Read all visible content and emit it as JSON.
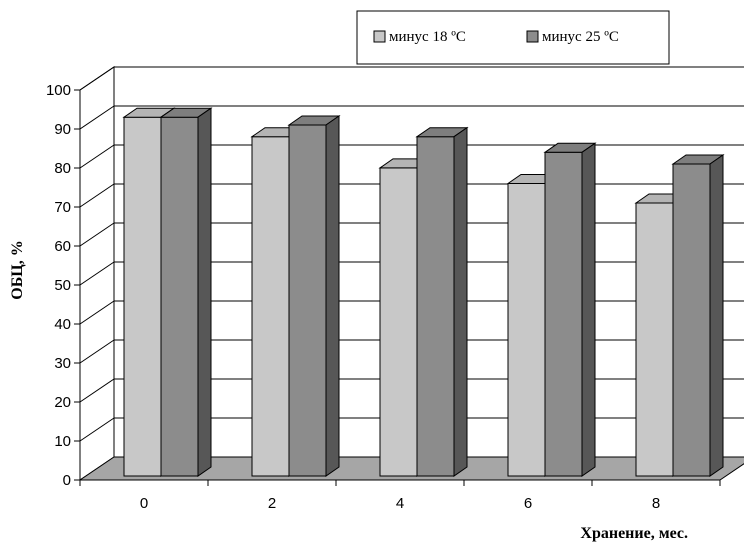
{
  "chart_data": {
    "type": "bar",
    "categories": [
      "0",
      "2",
      "4",
      "6",
      "8"
    ],
    "series": [
      {
        "name": "минус 18 ºС",
        "values": [
          92,
          87,
          79,
          75,
          70
        ],
        "color": "#c8c8c8"
      },
      {
        "name": "минус 25 ºС",
        "values": [
          92,
          90,
          87,
          83,
          80
        ],
        "color": "#8c8c8c"
      }
    ],
    "xlabel": "Хранение, мес.",
    "ylabel": "ОБЦ, %",
    "ylim": [
      0,
      100
    ],
    "yticks": [
      "0",
      "10",
      "20",
      "30",
      "40",
      "50",
      "60",
      "70",
      "80",
      "90",
      "100"
    ],
    "grid": true,
    "legend_position": "top-right",
    "style": "3d",
    "floor_color": "#a6a6a6"
  }
}
